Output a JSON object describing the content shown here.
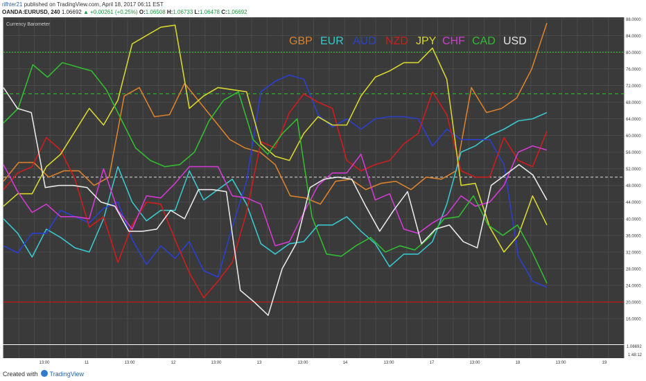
{
  "header": {
    "user": "rifhter21",
    "published": "published on TradingView.com, April 18, 2017 06:11 EST",
    "symbol": "OANDA:EURUSD, 240",
    "price": "1.06692",
    "change": "▲ +0.00261 (+0.25%)",
    "o_label": "O:",
    "o_value": "1.06508",
    "h_label": "H:",
    "h_value": "1.06733",
    "l_label": "L:",
    "l_value": "1.06478",
    "c_label": "C:",
    "c_value": "1.06692"
  },
  "footer": {
    "created_with": "Created with",
    "brand": "TradingView"
  },
  "colors": {
    "panel_bg": "#3a3a3a",
    "grid": "#4b4b4b",
    "green_dotted": "#2fb52f",
    "red_line": "#d01818",
    "white_dashed": "#bdbdbd"
  },
  "chart_data": {
    "type": "line",
    "title": "Currency Barometer",
    "x_tick_labels": [
      "13:00",
      "11",
      "13:00",
      "12",
      "13:00",
      "13",
      "13:00",
      "14",
      "13:00",
      "17",
      "13:00",
      "18",
      "13:00",
      "19"
    ],
    "y_tick_labels": [
      "88.0000",
      "84.0000",
      "80.0000",
      "76.0000",
      "72.0000",
      "68.0000",
      "64.0000",
      "60.0000",
      "56.0000",
      "52.0000",
      "48.0000",
      "44.0000",
      "40.0000",
      "36.0000",
      "32.0000",
      "28.0000",
      "24.0000",
      "20.0000",
      "16.0000"
    ],
    "ylim": [
      14,
      90
    ],
    "reference_lines": [
      80,
      70,
      50,
      20
    ],
    "lower_pane_labels": [
      "1.06692",
      "1:48:12"
    ],
    "series": [
      {
        "name": "GBP",
        "color": "#d9812b",
        "values": [
          49,
          53.5,
          53.5,
          50,
          51.5,
          51.5,
          48,
          50,
          69.5,
          71.5,
          64.5,
          65,
          72.5,
          68,
          63.5,
          59,
          57,
          56,
          53,
          45.5,
          45,
          43.5,
          49,
          49.5,
          47,
          48.5,
          49,
          47,
          50,
          49.5,
          51.5,
          71.5,
          65.5,
          66.5,
          69,
          76,
          87
        ]
      },
      {
        "name": "EUR",
        "color": "#39c6cc",
        "values": [
          40,
          36.5,
          30.8,
          37.5,
          35.5,
          33,
          32,
          40,
          52.5,
          44,
          39.5,
          42,
          42,
          51.5,
          44.5,
          47,
          49.5,
          43.5,
          34,
          31.5,
          34,
          34.5,
          38.5,
          38.5,
          40.5,
          37,
          34,
          28.5,
          31.5,
          31.5,
          34.5,
          43.5,
          56,
          57.5,
          60,
          61.5,
          63.5,
          64,
          65.5
        ]
      },
      {
        "name": "AUD",
        "color": "#2b3fd0",
        "values": [
          33.5,
          31.8,
          36.5,
          36.5,
          42,
          40.5,
          39,
          42.5,
          44,
          35,
          29,
          33.5,
          30.5,
          34.5,
          27.5,
          26,
          38,
          49,
          70.5,
          73,
          74.5,
          73.5,
          65,
          62,
          64,
          61.5,
          64,
          64.5,
          64.5,
          64,
          57.5,
          61.5,
          59,
          59,
          59,
          53,
          31,
          25,
          23.5
        ]
      },
      {
        "name": "NZD",
        "color": "#d01c1c",
        "values": [
          47,
          51,
          52.5,
          59.5,
          56.5,
          49.5,
          38,
          40.5,
          29.5,
          38.5,
          44,
          43.5,
          35,
          27,
          21,
          25,
          29.5,
          41.5,
          58.5,
          57,
          65.5,
          70,
          68,
          66.5,
          54,
          51.5,
          53,
          54,
          58,
          60.5,
          70.5,
          65,
          51.5,
          50,
          50,
          59.5,
          54,
          52.5,
          61
        ]
      },
      {
        "name": "JPY",
        "color": "#d6d62f",
        "values": [
          43,
          46,
          46,
          52.5,
          55.5,
          61,
          66.5,
          62.5,
          68.5,
          82,
          84,
          86,
          86.5,
          66.5,
          69.5,
          71.5,
          71,
          70.5,
          58,
          55,
          54,
          60.5,
          64.5,
          62.5,
          62.5,
          69.5,
          74,
          75.5,
          77.5,
          77.5,
          81,
          73.5,
          48,
          48.5,
          38,
          32,
          36,
          45.5,
          38.5
        ]
      },
      {
        "name": "CHF",
        "color": "#d13bd1",
        "values": [
          53,
          46.5,
          41.5,
          43.5,
          40.5,
          40.5,
          40,
          52,
          42,
          37.5,
          45.5,
          45,
          48.5,
          52.5,
          52.5,
          52.5,
          45.5,
          45,
          43.5,
          33.5,
          34.5,
          41.5,
          48,
          51,
          51,
          55.5,
          44.5,
          46,
          37.5,
          36.5,
          39,
          41,
          45.5,
          43,
          44,
          48,
          56,
          57.5,
          56.5
        ]
      },
      {
        "name": "CAD",
        "color": "#32bc32",
        "values": [
          63,
          66.5,
          77,
          74,
          77.5,
          76.5,
          75.5,
          71,
          64,
          57,
          54,
          52.5,
          53,
          56,
          63.5,
          68.5,
          70.5,
          59,
          55.5,
          60.5,
          64,
          40.5,
          31.5,
          31,
          33.5,
          35.5,
          32,
          33.5,
          32.5,
          35.5,
          40,
          40.5,
          45.5,
          38.5,
          36,
          38.5,
          32,
          24.5
        ]
      },
      {
        "name": "USD",
        "color": "#e6e6e6",
        "values": [
          71.5,
          66.5,
          65.5,
          47.5,
          48,
          48,
          47.5,
          44,
          43,
          37,
          37,
          37.5,
          42,
          40,
          47,
          47,
          46.5,
          22.8,
          20,
          16.8,
          28,
          34,
          47.5,
          49.5,
          50,
          49.5,
          43,
          37,
          42,
          46.5,
          34,
          37.5,
          38.5,
          34.5,
          33,
          48,
          50.5,
          53,
          50.5,
          44.5
        ]
      }
    ]
  }
}
